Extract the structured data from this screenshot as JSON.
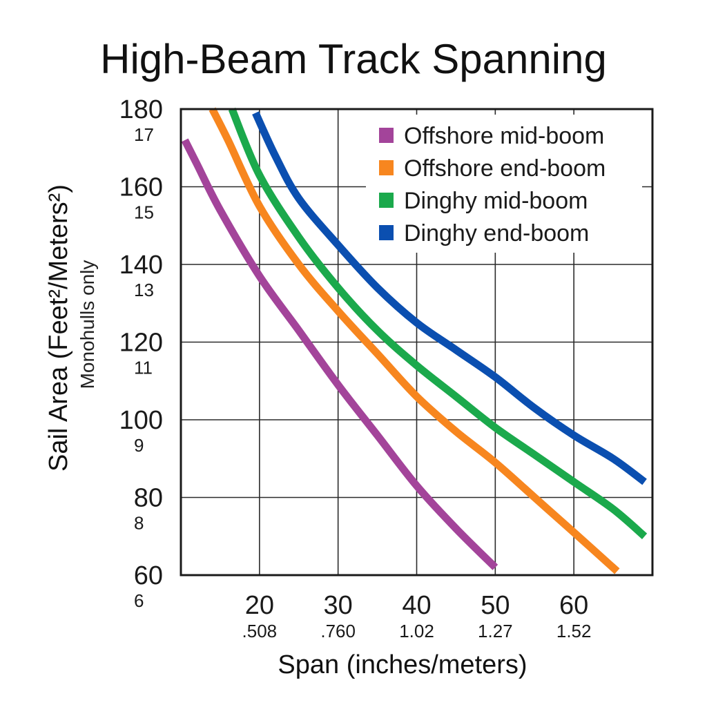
{
  "chart_data": {
    "type": "line",
    "title": "High-Beam Track Spanning",
    "xlabel": "Span (inches/meters)",
    "ylabel": "Sail Area (Feet²/Meters²)",
    "ylabel_note": "Monohulls only",
    "xlim": [
      10,
      70
    ],
    "ylim": [
      60,
      180
    ],
    "x_ticks": [
      {
        "value": 20,
        "label": "20",
        "sublabel": ".508"
      },
      {
        "value": 30,
        "label": "30",
        "sublabel": ".760"
      },
      {
        "value": 40,
        "label": "40",
        "sublabel": "1.02"
      },
      {
        "value": 50,
        "label": "50",
        "sublabel": "1.27"
      },
      {
        "value": 60,
        "label": "60",
        "sublabel": "1.52"
      }
    ],
    "y_ticks": [
      {
        "value": 60,
        "label": "60",
        "sublabel": "6"
      },
      {
        "value": 80,
        "label": "80",
        "sublabel": "8"
      },
      {
        "value": 100,
        "label": "100",
        "sublabel": "9"
      },
      {
        "value": 120,
        "label": "120",
        "sublabel": "11"
      },
      {
        "value": 140,
        "label": "140",
        "sublabel": "13"
      },
      {
        "value": 160,
        "label": "160",
        "sublabel": "15"
      },
      {
        "value": 180,
        "label": "180",
        "sublabel": "17"
      }
    ],
    "grid": true,
    "legend_position": "top-right",
    "series": [
      {
        "name": "Offshore mid-boom",
        "color": "#a3449a",
        "x": [
          10.5,
          12,
          15,
          20,
          25,
          30,
          35,
          40,
          45,
          50
        ],
        "y": [
          172,
          166,
          154,
          137,
          123,
          109,
          96,
          83,
          72,
          62
        ]
      },
      {
        "name": "Offshore end-boom",
        "color": "#f7861f",
        "x": [
          14,
          16,
          20,
          25,
          30,
          35,
          40,
          45,
          50,
          55,
          60,
          65.5
        ],
        "y": [
          180,
          172,
          155,
          140,
          128,
          117,
          106,
          97,
          89,
          80,
          71,
          61
        ]
      },
      {
        "name": "Dinghy mid-boom",
        "color": "#1ba94c",
        "x": [
          16.5,
          20,
          25,
          30,
          35,
          40,
          45,
          50,
          55,
          60,
          65,
          69
        ],
        "y": [
          180,
          163,
          147,
          134,
          123,
          114,
          106,
          98,
          91,
          84,
          77,
          70
        ]
      },
      {
        "name": "Dinghy end-boom",
        "color": "#0b4fb0",
        "x": [
          19.5,
          22,
          25,
          30,
          35,
          40,
          45,
          50,
          55,
          60,
          65,
          69
        ],
        "y": [
          179,
          168,
          157,
          145,
          134,
          125,
          118,
          111,
          103,
          96,
          90,
          84
        ]
      }
    ]
  }
}
